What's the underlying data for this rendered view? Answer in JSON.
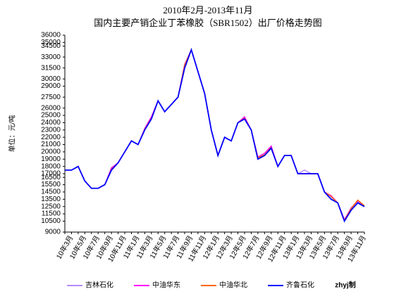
{
  "chart_data": {
    "type": "line",
    "title": "2010年2月-2013年11月",
    "subtitle": "国内主要产销企业丁苯橡胶（SBR1502）出厂价格走势图",
    "y_label": "单位：元/吨",
    "note": "zhyj制",
    "categories": [
      null,
      "10年3月",
      null,
      "10年5月",
      null,
      "10年7月",
      null,
      "10年9月",
      null,
      "10年11月",
      null,
      "11年1月",
      null,
      "11年3月",
      null,
      "11年5月",
      null,
      "11年7月",
      null,
      "11年9月",
      null,
      "11年11月",
      null,
      "12年1月",
      null,
      "12年3月",
      null,
      "12年5月",
      null,
      "12年7月",
      null,
      "12年9月",
      null,
      "12年11月",
      null,
      "13年1月",
      null,
      "13年3月",
      null,
      "13年5月",
      null,
      "13年7月",
      null,
      "13年9月",
      null,
      "13年11月"
    ],
    "ylim": [
      9000,
      36000
    ],
    "yticks": [
      36000,
      35000,
      34500,
      33000,
      31500,
      30000,
      29000,
      27500,
      26000,
      25000,
      24000,
      23000,
      22000,
      21000,
      20000,
      19000,
      18000,
      17000,
      16500,
      15500,
      14500,
      13500,
      12500,
      11500,
      10500,
      9000
    ],
    "series": [
      {
        "name": "吉林石化",
        "color": "#b38cff",
        "values": [
          17500,
          17500,
          18000,
          16000,
          15000,
          15000,
          15500,
          17500,
          18500,
          20000,
          21500,
          21000,
          23000,
          24500,
          27000,
          25500,
          26500,
          27500,
          31800,
          34000,
          31000,
          28000,
          23000,
          19500,
          22000,
          21500,
          24000,
          24800,
          23000,
          19200,
          19500,
          20500,
          18000,
          19500,
          19500,
          17000,
          17500,
          17000,
          17000,
          14500,
          13800,
          13000,
          10500,
          12200,
          13200,
          12500
        ]
      },
      {
        "name": "中油华东",
        "color": "#ff00ff",
        "values": [
          17500,
          17500,
          18000,
          16000,
          15000,
          15000,
          15500,
          17800,
          18500,
          20000,
          21500,
          21000,
          23200,
          24800,
          27000,
          25500,
          26500,
          27500,
          32000,
          34000,
          31000,
          28000,
          23000,
          19500,
          22000,
          21500,
          24000,
          24800,
          23000,
          19300,
          19800,
          20800,
          18000,
          19500,
          19500,
          17000,
          17000,
          17000,
          17000,
          14500,
          14000,
          13000,
          10700,
          12300,
          13300,
          12600
        ]
      },
      {
        "name": "中油华北",
        "color": "#ff6600",
        "values": [
          17500,
          17500,
          18000,
          16000,
          15000,
          15000,
          15500,
          17600,
          18500,
          20000,
          21500,
          21000,
          23100,
          24600,
          27000,
          25500,
          26500,
          27500,
          31900,
          34000,
          31000,
          28000,
          23000,
          19500,
          22000,
          21500,
          24000,
          24600,
          23000,
          19200,
          19600,
          20600,
          18000,
          19500,
          19500,
          17000,
          17000,
          17000,
          17000,
          14500,
          13900,
          13000,
          10600,
          12200,
          13400,
          12600
        ]
      },
      {
        "name": "齐鲁石化",
        "color": "#0000ff",
        "values": [
          17500,
          17500,
          18000,
          16000,
          15000,
          15000,
          15500,
          17500,
          18500,
          20000,
          21500,
          21000,
          23000,
          24500,
          27000,
          25500,
          26500,
          27500,
          31500,
          34000,
          31000,
          28000,
          23000,
          19500,
          22000,
          21500,
          24000,
          24500,
          23000,
          19000,
          19500,
          20500,
          18000,
          19500,
          19500,
          17000,
          17000,
          17000,
          17000,
          14500,
          13500,
          13000,
          10500,
          12000,
          13000,
          12500
        ]
      }
    ]
  }
}
